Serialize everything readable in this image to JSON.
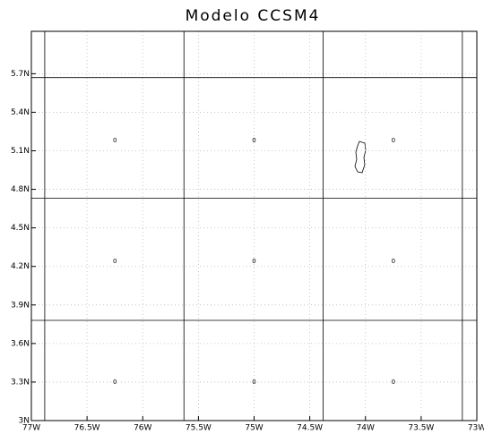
{
  "chart_data": {
    "type": "map",
    "title": "Modelo CCSM4",
    "xlim": [
      -77,
      -73
    ],
    "ylim": [
      3,
      6.03
    ],
    "xticks": [
      {
        "value": -77,
        "label": "77W"
      },
      {
        "value": -76.5,
        "label": "76.5W"
      },
      {
        "value": -76,
        "label": "76W"
      },
      {
        "value": -75.5,
        "label": "75.5W"
      },
      {
        "value": -75,
        "label": "75W"
      },
      {
        "value": -74.5,
        "label": "74.5W"
      },
      {
        "value": -74,
        "label": "74W"
      },
      {
        "value": -73.5,
        "label": "73.5W"
      },
      {
        "value": -73,
        "label": "73W"
      }
    ],
    "yticks": [
      {
        "value": 3,
        "label": "3N"
      },
      {
        "value": 3.3,
        "label": "3.3N"
      },
      {
        "value": 3.6,
        "label": "3.6N"
      },
      {
        "value": 3.9,
        "label": "3.9N"
      },
      {
        "value": 4.2,
        "label": "4.2N"
      },
      {
        "value": 4.5,
        "label": "4.5N"
      },
      {
        "value": 4.8,
        "label": "4.8N"
      },
      {
        "value": 5.1,
        "label": "5.1N"
      },
      {
        "value": 5.4,
        "label": "5.4N"
      },
      {
        "value": 5.7,
        "label": "5.7N"
      }
    ],
    "grid": true,
    "cell_lons": [
      -76.88,
      -75.63,
      -74.38,
      -73.13
    ],
    "cell_lats": [
      3.78,
      4.73,
      5.67
    ],
    "x": [
      -76.25,
      -75.0,
      -73.75,
      -76.25,
      -75.0,
      -73.75,
      -76.25,
      -75.0,
      -73.75
    ],
    "y": [
      5.18,
      5.18,
      5.18,
      4.24,
      4.24,
      4.24,
      3.3,
      3.3,
      3.3
    ],
    "values": [
      0,
      0,
      0,
      0,
      0,
      0,
      0,
      0,
      0
    ]
  }
}
